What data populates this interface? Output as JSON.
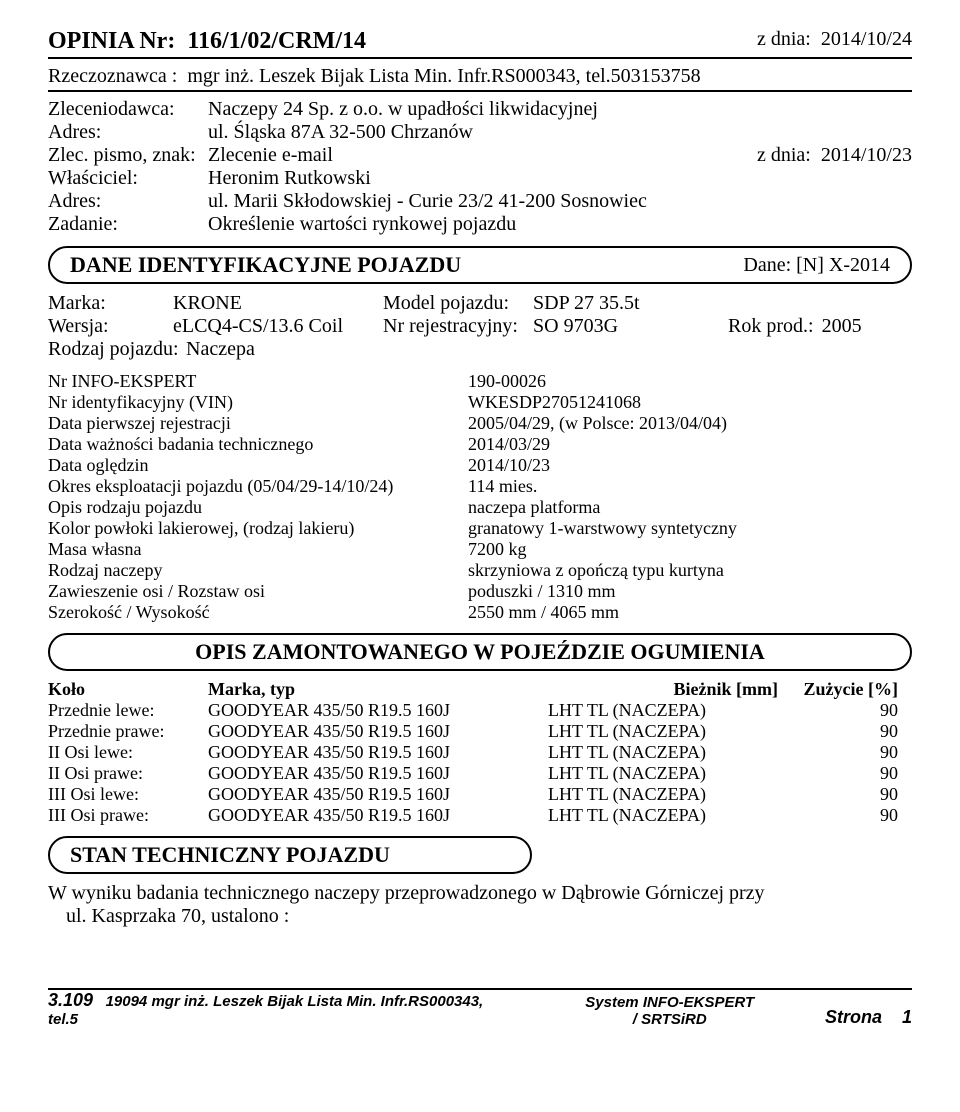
{
  "header": {
    "opinia_label": "OPINIA Nr:",
    "opinia_nr": "116/1/02/CRM/14",
    "z_dnia_label": "z dnia:",
    "z_dnia": "2014/10/24",
    "rzeczoznawca_label": "Rzeczoznawca :",
    "rzeczoznawca": "mgr inż. Leszek Bijak Lista Min. Infr.RS000343, tel.503153758",
    "zleceniodawca_k": "Zleceniodawca:",
    "zleceniodawca_v": "Naczepy 24 Sp. z o.o. w upadłości likwidacyjnej",
    "adres1_k": "Adres:",
    "adres1_v": "ul. Śląska 87A 32-500 Chrzanów",
    "zlec_k": "Zlec. pismo, znak:",
    "zlec_v": "Zlecenie e-mail",
    "zlec_date_k": "z dnia:",
    "zlec_date_v": "2014/10/23",
    "wlasciciel_k": "Właściciel:",
    "wlasciciel_v": "Heronim  Rutkowski",
    "adres2_k": "Adres:",
    "adres2_v": "ul. Marii Skłodowskiej - Curie 23/2 41-200 Sosnowiec",
    "zadanie_k": "Zadanie:",
    "zadanie_v": "Określenie wartości rynkowej pojazdu"
  },
  "box1": {
    "title": "DANE IDENTYFIKACYJNE POJAZDU",
    "right": "Dane: [N] X-2014"
  },
  "veh": {
    "marka_k": "Marka:",
    "marka_v": "KRONE",
    "model_k": "Model pojazdu:",
    "model_v": "SDP 27 35.5t",
    "wersja_k": "Wersja:",
    "wersja_v": "eLCQ4-CS/13.6 Coil",
    "nrrej_k": "Nr rejestracyjny:",
    "nrrej_v": "SO 9703G",
    "rok_k": "Rok prod.:",
    "rok_v": "2005",
    "rodzaj_k": "Rodzaj pojazdu:",
    "rodzaj_v": "Naczepa"
  },
  "info": [
    {
      "k": "Nr INFO-EKSPERT",
      "v": "190-00026"
    },
    {
      "k": "Nr identyfikacyjny (VIN)",
      "v": "WKESDP27051241068"
    },
    {
      "k": "Data pierwszej rejestracji",
      "v": "2005/04/29, (w Polsce: 2013/04/04)"
    },
    {
      "k": "Data ważności badania technicznego",
      "v": "2014/03/29"
    },
    {
      "k": "Data oględzin",
      "v": "2014/10/23"
    },
    {
      "k": "Okres eksploatacji pojazdu (05/04/29-14/10/24)",
      "v": "114 mies."
    },
    {
      "k": "Opis rodzaju pojazdu",
      "v": "naczepa platforma"
    },
    {
      "k": "Kolor powłoki lakierowej, (rodzaj lakieru)",
      "v": "granatowy 1-warstwowy syntetyczny"
    },
    {
      "k": "Masa własna",
      "v": "7200 kg"
    },
    {
      "k": "Rodzaj naczepy",
      "v": "skrzyniowa z opończą typu kurtyna"
    },
    {
      "k": "Zawieszenie osi  /  Rozstaw osi",
      "v": "poduszki  /  1310 mm"
    },
    {
      "k": "Szerokość  /  Wysokość",
      "v": "2550 mm  /  4065 mm"
    }
  ],
  "box2": {
    "title": "OPIS ZAMONTOWANEGO W POJEŹDZIE OGUMIENIA"
  },
  "tires": {
    "head": {
      "c1": "Koło",
      "c2": "Marka, typ",
      "c3": "Bieżnik [mm]",
      "c4": "Zużycie [%]"
    },
    "rows": [
      {
        "c1": "Przednie lewe:",
        "c2": "GOODYEAR 435/50 R19.5  160J",
        "c3": "LHT TL (NACZEPA)",
        "c4": "90"
      },
      {
        "c1": "Przednie prawe:",
        "c2": "GOODYEAR 435/50 R19.5  160J",
        "c3": "LHT TL (NACZEPA)",
        "c4": "90"
      },
      {
        "c1": "II Osi lewe:",
        "c2": "GOODYEAR 435/50 R19.5  160J",
        "c3": "LHT TL (NACZEPA)",
        "c4": "90"
      },
      {
        "c1": "II Osi prawe:",
        "c2": "GOODYEAR 435/50 R19.5  160J",
        "c3": "LHT TL (NACZEPA)",
        "c4": "90"
      },
      {
        "c1": "III Osi lewe:",
        "c2": "GOODYEAR 435/50 R19.5  160J",
        "c3": "LHT TL (NACZEPA)",
        "c4": "90"
      },
      {
        "c1": "III Osi prawe:",
        "c2": "GOODYEAR 435/50 R19.5  160J",
        "c3": "LHT TL (NACZEPA)",
        "c4": "90"
      }
    ]
  },
  "box3": {
    "title": "STAN TECHNICZNY POJAZDU"
  },
  "techtext": {
    "l1": "W wyniku badania technicznego naczepy przeprowadzonego w Dąbrowie Górniczej przy",
    "l2": "ul. Kasprzaka 70, ustalono :"
  },
  "footer": {
    "left_code": "3.109",
    "left_rest": "19094 mgr inż. Leszek Bijak Lista Min. Infr.RS000343, tel.5",
    "mid1": "System INFO-EKSPERT",
    "mid2": "/ SRTSiRD",
    "right_label": "Strona",
    "right_num": "1"
  }
}
